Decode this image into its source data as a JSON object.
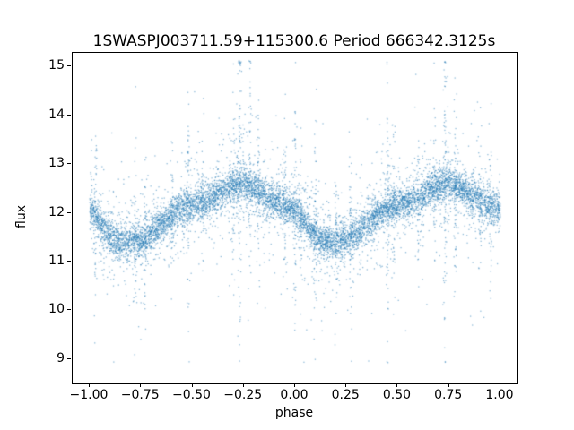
{
  "figure": {
    "title": "1SWASPJ003711.59+115300.6 Period 666342.3125s",
    "xlabel": "phase",
    "ylabel": "flux"
  },
  "chart_data": {
    "type": "scatter",
    "title": "1SWASPJ003711.59+115300.6 Period 666342.3125s",
    "xlabel": "phase",
    "ylabel": "flux",
    "grid": false,
    "legend": null,
    "xlim": [
      -1.083,
      1.083
    ],
    "ylim": [
      8.5,
      15.28
    ],
    "x_ticks": [
      -1.0,
      -0.75,
      -0.5,
      -0.25,
      0.0,
      0.25,
      0.5,
      0.75,
      1.0
    ],
    "x_tick_labels": [
      "−1.00",
      "−0.75",
      "−0.50",
      "−0.25",
      "0.00",
      "0.25",
      "0.50",
      "0.75",
      "1.00"
    ],
    "y_ticks": [
      9,
      10,
      11,
      12,
      13,
      14,
      15
    ],
    "y_tick_labels": [
      "9",
      "10",
      "11",
      "12",
      "13",
      "14",
      "15"
    ],
    "marker_color": "31,119,180",
    "marker_alpha": 0.5,
    "marker_size": 1.3,
    "n_points": 9200,
    "seed": 1337,
    "x_range": [
      -1.0,
      1.0
    ],
    "y_clip": [
      8.92,
      15.12
    ],
    "noise": {
      "sigma_core": 0.16,
      "sigma_mid": 0.42,
      "frac_mid": 0.22,
      "sigma_out": 1.15,
      "frac_out": 0.035
    },
    "baseline_curve": [
      [
        0.0,
        12.05
      ],
      [
        0.04,
        11.85
      ],
      [
        0.08,
        11.6
      ],
      [
        0.12,
        11.45
      ],
      [
        0.18,
        11.4
      ],
      [
        0.25,
        11.45
      ],
      [
        0.3,
        11.55
      ],
      [
        0.35,
        11.75
      ],
      [
        0.4,
        11.95
      ],
      [
        0.45,
        12.1
      ],
      [
        0.5,
        12.15
      ],
      [
        0.55,
        12.2
      ],
      [
        0.6,
        12.3
      ],
      [
        0.65,
        12.45
      ],
      [
        0.7,
        12.55
      ],
      [
        0.75,
        12.6
      ],
      [
        0.8,
        12.5
      ],
      [
        0.85,
        12.35
      ],
      [
        0.9,
        12.25
      ],
      [
        0.95,
        12.15
      ],
      [
        1.0,
        12.05
      ]
    ],
    "spikes": [
      [
        -0.97,
        0.9,
        35
      ],
      [
        -0.78,
        1.0,
        40
      ],
      [
        -0.73,
        0.9,
        35
      ],
      [
        -0.6,
        0.8,
        30
      ],
      [
        -0.52,
        1.2,
        50
      ],
      [
        -0.45,
        0.8,
        30
      ],
      [
        -0.3,
        1.0,
        45
      ],
      [
        -0.27,
        1.7,
        80
      ],
      [
        -0.22,
        1.2,
        55
      ],
      [
        -0.18,
        0.9,
        40
      ],
      [
        -0.05,
        1.0,
        45
      ],
      [
        0.0,
        1.3,
        55
      ],
      [
        0.03,
        0.9,
        35
      ],
      [
        0.1,
        1.1,
        45
      ],
      [
        0.2,
        0.9,
        35
      ],
      [
        0.27,
        0.9,
        40
      ],
      [
        0.45,
        1.2,
        50
      ],
      [
        0.48,
        1.0,
        40
      ],
      [
        0.6,
        0.8,
        30
      ],
      [
        0.68,
        0.9,
        35
      ],
      [
        0.73,
        1.7,
        80
      ],
      [
        0.78,
        1.1,
        50
      ],
      [
        0.9,
        0.9,
        35
      ],
      [
        0.95,
        1.0,
        40
      ]
    ],
    "spike_x_jitter": 0.004
  }
}
